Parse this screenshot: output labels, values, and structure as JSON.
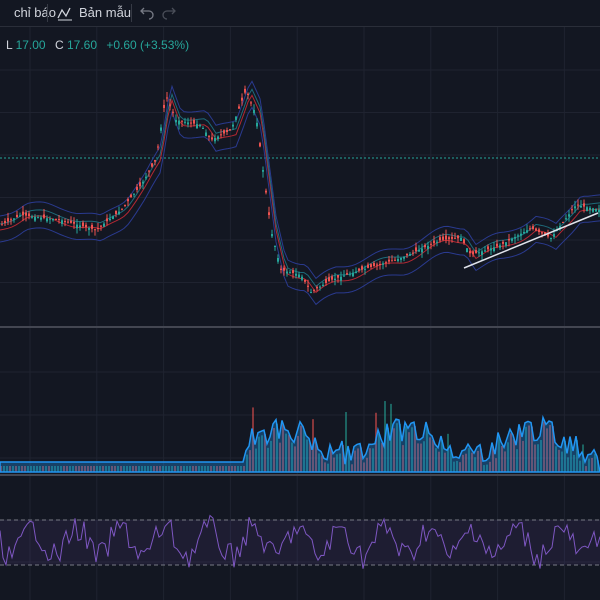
{
  "toolbar": {
    "indicators": "chỉ báo",
    "templates": "Bản mẫu"
  },
  "legend": {
    "low_label": "L",
    "low": "17.00",
    "close_label": "C",
    "close": "17.60",
    "change": "+0.60 (+3.53%)"
  }
}
